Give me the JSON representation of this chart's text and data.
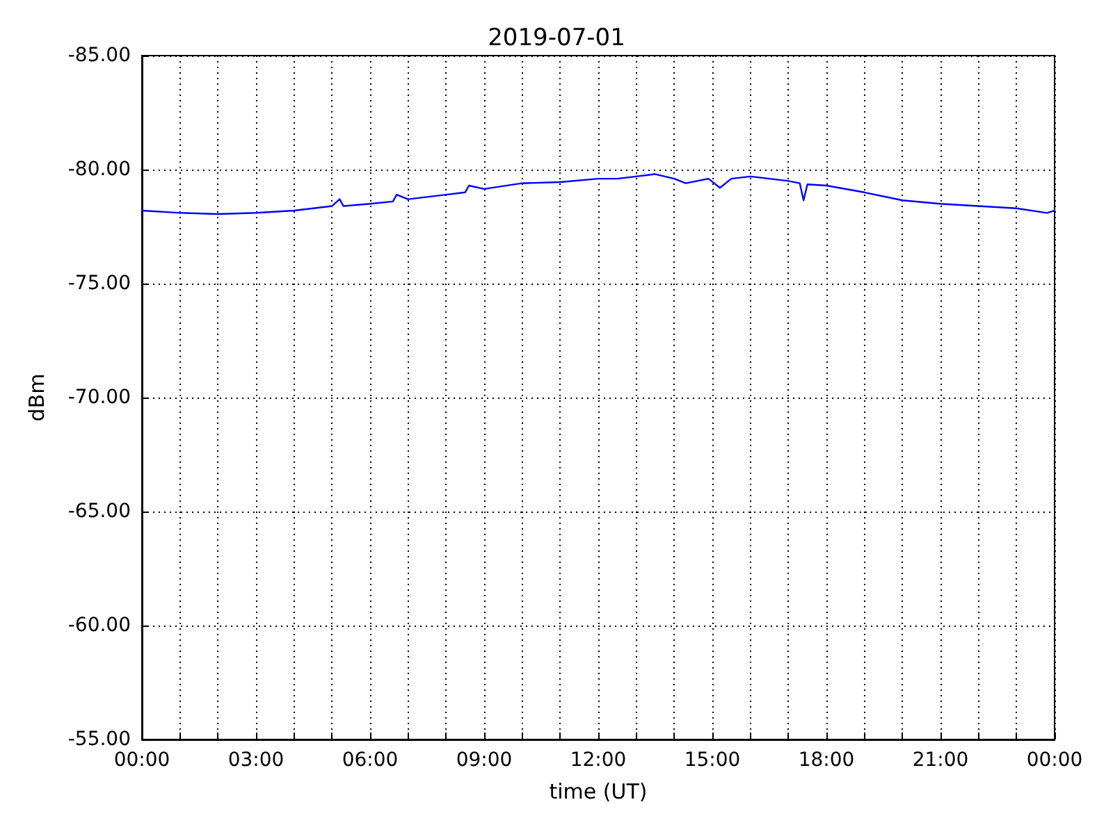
{
  "chart_data": {
    "type": "line",
    "title": "2019-07-01",
    "xlabel": "time (UT)",
    "ylabel": "dBm",
    "x": [
      0,
      1,
      2,
      3,
      4,
      5,
      5.2,
      5.3,
      6,
      6.6,
      6.7,
      7,
      8,
      8.5,
      8.6,
      9,
      10,
      11,
      12,
      12.5,
      13,
      13.5,
      14,
      14.3,
      14.9,
      15.2,
      15.5,
      16,
      17,
      17.3,
      17.4,
      17.5,
      18,
      19,
      20,
      21,
      22,
      23,
      23.8,
      24
    ],
    "series": [
      {
        "color": "#0000ff",
        "values": [
          -78.2,
          -78.1,
          -78.05,
          -78.1,
          -78.2,
          -78.4,
          -78.7,
          -78.4,
          -78.5,
          -78.6,
          -78.9,
          -78.7,
          -78.9,
          -79.0,
          -79.3,
          -79.15,
          -79.4,
          -79.45,
          -79.6,
          -79.6,
          -79.7,
          -79.8,
          -79.6,
          -79.4,
          -79.6,
          -79.2,
          -79.6,
          -79.7,
          -79.5,
          -79.4,
          -78.65,
          -79.35,
          -79.3,
          -79.0,
          -78.65,
          -78.5,
          -78.4,
          -78.3,
          -78.1,
          -78.2
        ]
      }
    ],
    "xlim": [
      0,
      24
    ],
    "xticks": [
      {
        "value": 0,
        "label": "00:00"
      },
      {
        "value": 1,
        "label": null
      },
      {
        "value": 2,
        "label": null
      },
      {
        "value": 3,
        "label": "03:00"
      },
      {
        "value": 4,
        "label": null
      },
      {
        "value": 5,
        "label": null
      },
      {
        "value": 6,
        "label": "06:00"
      },
      {
        "value": 7,
        "label": null
      },
      {
        "value": 8,
        "label": null
      },
      {
        "value": 9,
        "label": "09:00"
      },
      {
        "value": 10,
        "label": null
      },
      {
        "value": 11,
        "label": null
      },
      {
        "value": 12,
        "label": "12:00"
      },
      {
        "value": 13,
        "label": null
      },
      {
        "value": 14,
        "label": null
      },
      {
        "value": 15,
        "label": "15:00"
      },
      {
        "value": 16,
        "label": null
      },
      {
        "value": 17,
        "label": null
      },
      {
        "value": 18,
        "label": "18:00"
      },
      {
        "value": 19,
        "label": null
      },
      {
        "value": 20,
        "label": null
      },
      {
        "value": 21,
        "label": "21:00"
      },
      {
        "value": 22,
        "label": null
      },
      {
        "value": 23,
        "label": null
      },
      {
        "value": 24,
        "label": "00:00"
      }
    ],
    "ylim": [
      -55,
      -85
    ],
    "yticks": [
      {
        "value": -85,
        "label": "-85.00"
      },
      {
        "value": -80,
        "label": "-80.00"
      },
      {
        "value": -75,
        "label": "-75.00"
      },
      {
        "value": -70,
        "label": "-70.00"
      },
      {
        "value": -65,
        "label": "-65.00"
      },
      {
        "value": -60,
        "label": "-60.00"
      },
      {
        "value": -55,
        "label": "-55.00"
      }
    ],
    "grid": true,
    "marker": "none",
    "line_style": "solid"
  }
}
